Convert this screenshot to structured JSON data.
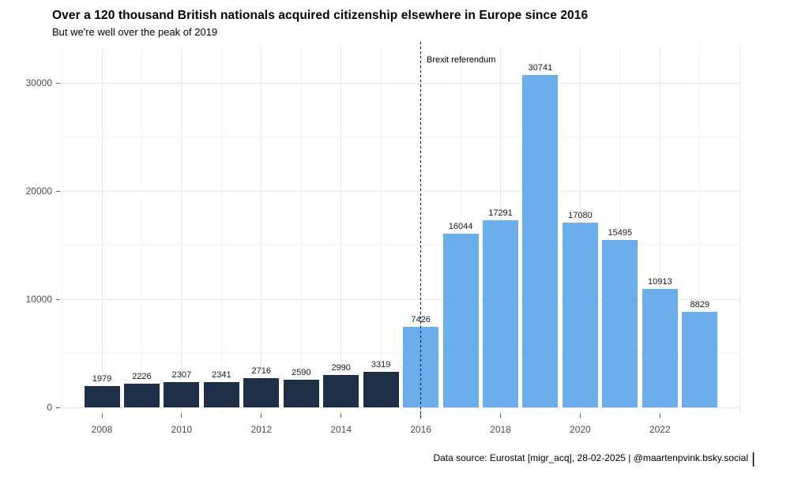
{
  "chart_data": {
    "type": "bar",
    "title": "Over a 120 thousand British nationals acquired citizenship elsewhere in Europe since 2016",
    "subtitle": "But we're well over the peak of 2019",
    "caption": "Data source: Eurostat [migr_acq], 28-02-2025 | @maartenpvink.bsky.social",
    "caption_end_bar": "|",
    "annotation": {
      "label": "Brexit referendum",
      "x": 2016,
      "line_style": "dashed",
      "line_color": "#000000"
    },
    "categories": [
      2008,
      2009,
      2010,
      2011,
      2012,
      2013,
      2014,
      2015,
      2016,
      2017,
      2018,
      2019,
      2020,
      2021,
      2022,
      2023
    ],
    "values": [
      1979,
      2226,
      2307,
      2341,
      2716,
      2590,
      2990,
      3319,
      7426,
      16044,
      17291,
      30741,
      17080,
      15495,
      10913,
      8829
    ],
    "color_split_year": 2016,
    "bar_colors": {
      "before_2016": "#1e2e46",
      "from_2016": "#6badea"
    },
    "xlabel": "",
    "ylabel": "",
    "yticks": [
      0,
      10000,
      20000,
      30000
    ],
    "yticks_minor": [
      5000,
      15000,
      25000
    ],
    "xticks": [
      2008,
      2010,
      2012,
      2014,
      2016,
      2018,
      2020,
      2022
    ],
    "ylim": [
      0,
      33400
    ],
    "grid": "on",
    "legend": "none",
    "value_labels": "above bars"
  }
}
